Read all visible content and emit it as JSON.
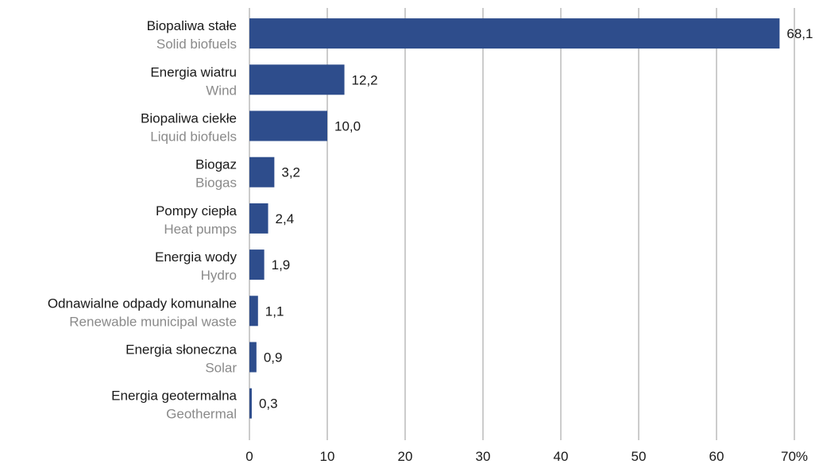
{
  "chart_data": {
    "type": "bar",
    "orientation": "horizontal",
    "categories": [
      {
        "pl": "Biopaliwa stałe",
        "en": "Solid biofuels"
      },
      {
        "pl": "Energia wiatru",
        "en": "Wind"
      },
      {
        "pl": "Biopaliwa ciekłe",
        "en": "Liquid biofuels"
      },
      {
        "pl": "Biogaz",
        "en": "Biogas"
      },
      {
        "pl": "Pompy ciepła",
        "en": "Heat pumps"
      },
      {
        "pl": "Energia wody",
        "en": "Hydro"
      },
      {
        "pl": "Odnawialne odpady komunalne",
        "en": "Renewable municipal waste"
      },
      {
        "pl": "Energia słoneczna",
        "en": "Solar"
      },
      {
        "pl": "Energia geotermalna",
        "en": "Geothermal"
      }
    ],
    "values": [
      68.1,
      12.2,
      10.0,
      3.2,
      2.4,
      1.9,
      1.1,
      0.9,
      0.3
    ],
    "value_labels": [
      "68,1",
      "12,2",
      "10,0",
      "3,2",
      "2,4",
      "1,9",
      "1,1",
      "0,9",
      "0,3"
    ],
    "xlim": [
      0,
      70
    ],
    "x_ticks": [
      0,
      10,
      20,
      30,
      40,
      50,
      60,
      70
    ],
    "x_tick_labels": [
      "0",
      "10",
      "20",
      "30",
      "40",
      "50",
      "60",
      "70%"
    ],
    "grid": "vertical",
    "colors": {
      "bar": "#2e4d8c",
      "grid": "#9a9a9a",
      "label_primary": "#1a1a1a",
      "label_secondary": "#8a8a8a"
    }
  }
}
